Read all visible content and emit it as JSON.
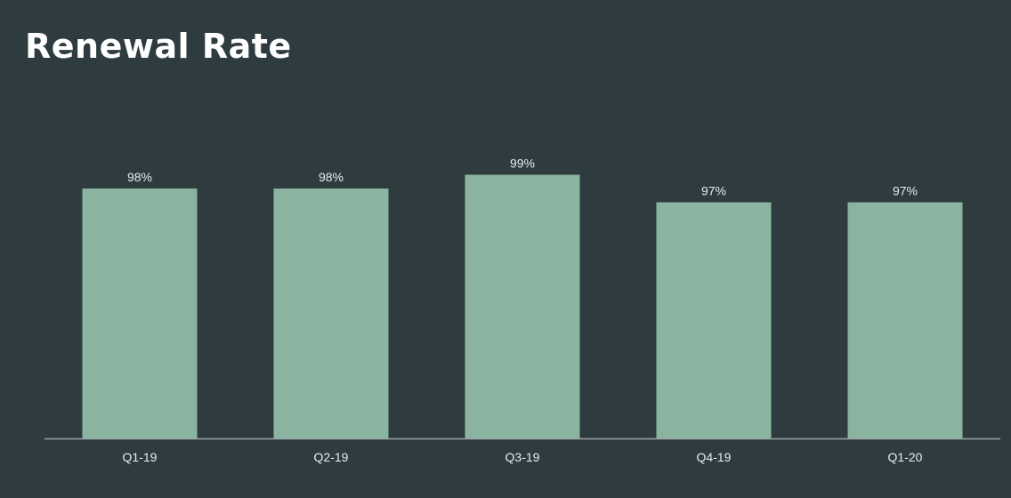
{
  "slide": {
    "title": "Renewal Rate"
  },
  "chart_data": {
    "type": "bar",
    "title": "Renewal Rate",
    "categories": [
      "Q1-19",
      "Q2-19",
      "Q3-19",
      "Q4-19",
      "Q1-20"
    ],
    "values": [
      98,
      98,
      99,
      97,
      97
    ],
    "data_labels": [
      "98%",
      "98%",
      "99%",
      "97%",
      "97%"
    ],
    "xlabel": "",
    "ylabel": "",
    "unit": "%",
    "grid": false,
    "legend": "none",
    "colors": {
      "bar": "#8bb4a0",
      "baseline": "#9aa3a6",
      "label": "#e6ecec",
      "background": "#2e3c40"
    }
  }
}
